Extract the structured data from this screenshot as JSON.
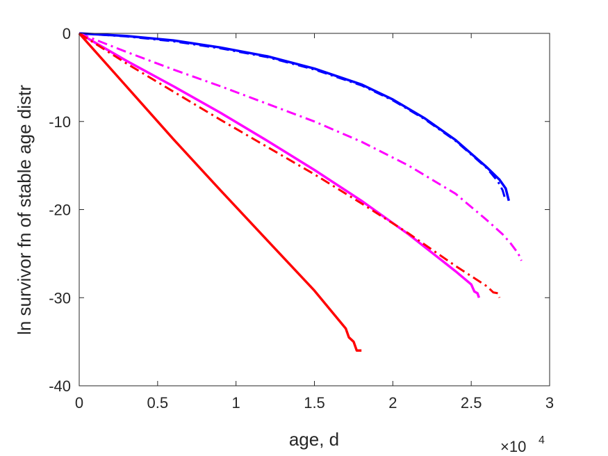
{
  "chart_data": {
    "type": "line",
    "title": "",
    "xlabel": "age, d",
    "ylabel": "ln survivor fn of stable age distr",
    "x_exponent_label": {
      "base": "×10",
      "exp": "4"
    },
    "xlim": [
      0,
      3
    ],
    "ylim": [
      -40,
      0
    ],
    "xticks": [
      "0",
      "0.5",
      "1",
      "1.5",
      "2",
      "2.5",
      "3"
    ],
    "yticks": [
      "0",
      "-10",
      "-20",
      "-30",
      "-40"
    ],
    "xtick_values": [
      0,
      0.5,
      1,
      1.5,
      2,
      2.5,
      3
    ],
    "ytick_values": [
      0,
      -10,
      -20,
      -30,
      -40
    ],
    "grid": false,
    "box": true,
    "series": [
      {
        "color": "#0000ff",
        "style": "solid",
        "width": 3.5,
        "points": [
          [
            0,
            0
          ],
          [
            0.3,
            -0.3
          ],
          [
            0.6,
            -0.8
          ],
          [
            0.9,
            -1.6
          ],
          [
            1.2,
            -2.6
          ],
          [
            1.5,
            -4.0
          ],
          [
            1.8,
            -5.8
          ],
          [
            2.0,
            -7.5
          ],
          [
            2.2,
            -9.6
          ],
          [
            2.4,
            -12.1
          ],
          [
            2.6,
            -15.2
          ],
          [
            2.68,
            -16.6
          ],
          [
            2.72,
            -17.6
          ],
          [
            2.74,
            -19.0
          ]
        ]
      },
      {
        "color": "#0000ff",
        "style": "dashdot",
        "width": 3,
        "points": [
          [
            0,
            0
          ],
          [
            0.3,
            -0.35
          ],
          [
            0.6,
            -0.9
          ],
          [
            0.9,
            -1.7
          ],
          [
            1.2,
            -2.7
          ],
          [
            1.5,
            -4.1
          ],
          [
            1.8,
            -5.9
          ],
          [
            2.0,
            -7.6
          ],
          [
            2.2,
            -9.7
          ],
          [
            2.4,
            -12.2
          ],
          [
            2.6,
            -15.3
          ],
          [
            2.67,
            -16.8
          ],
          [
            2.7,
            -17.8
          ],
          [
            2.72,
            -19.0
          ]
        ]
      },
      {
        "color": "#ff00ff",
        "style": "dashdot",
        "width": 3,
        "points": [
          [
            0,
            0
          ],
          [
            0.3,
            -2.1
          ],
          [
            0.6,
            -4.1
          ],
          [
            0.9,
            -6.0
          ],
          [
            1.2,
            -8.0
          ],
          [
            1.5,
            -10.0
          ],
          [
            1.8,
            -12.3
          ],
          [
            2.1,
            -15.0
          ],
          [
            2.4,
            -18.2
          ],
          [
            2.6,
            -21.2
          ],
          [
            2.7,
            -22.8
          ],
          [
            2.75,
            -23.8
          ],
          [
            2.8,
            -25.0
          ],
          [
            2.82,
            -25.8
          ]
        ]
      },
      {
        "color": "#ff00ff",
        "style": "solid",
        "width": 3.5,
        "points": [
          [
            0,
            0
          ],
          [
            0.3,
            -3.1
          ],
          [
            0.6,
            -6.0
          ],
          [
            0.9,
            -9.0
          ],
          [
            1.2,
            -12.2
          ],
          [
            1.5,
            -15.5
          ],
          [
            1.8,
            -19.0
          ],
          [
            2.1,
            -22.8
          ],
          [
            2.4,
            -27.0
          ],
          [
            2.5,
            -28.5
          ],
          [
            2.52,
            -29.3
          ],
          [
            2.54,
            -29.5
          ],
          [
            2.55,
            -30.0
          ]
        ]
      },
      {
        "color": "#ff0000",
        "style": "dashdot",
        "width": 3,
        "points": [
          [
            0,
            0
          ],
          [
            0.3,
            -3.4
          ],
          [
            0.6,
            -6.6
          ],
          [
            0.9,
            -9.8
          ],
          [
            1.2,
            -12.9
          ],
          [
            1.5,
            -16.0
          ],
          [
            1.8,
            -19.3
          ],
          [
            2.1,
            -22.7
          ],
          [
            2.4,
            -26.4
          ],
          [
            2.6,
            -28.7
          ],
          [
            2.64,
            -29.4
          ],
          [
            2.67,
            -29.5
          ],
          [
            2.68,
            -30.0
          ]
        ]
      },
      {
        "color": "#ff0000",
        "style": "solid",
        "width": 3.5,
        "points": [
          [
            0,
            0
          ],
          [
            0.3,
            -6.0
          ],
          [
            0.6,
            -12.0
          ],
          [
            0.9,
            -17.8
          ],
          [
            1.2,
            -23.5
          ],
          [
            1.5,
            -29.2
          ],
          [
            1.7,
            -33.5
          ],
          [
            1.72,
            -34.5
          ],
          [
            1.75,
            -35.0
          ],
          [
            1.77,
            -36.0
          ],
          [
            1.8,
            -36.0
          ]
        ]
      }
    ]
  }
}
